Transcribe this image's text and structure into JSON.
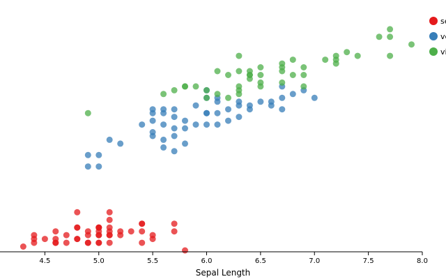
{
  "chart_data": {
    "type": "scatter",
    "title": "",
    "xlabel": "Sepal Length",
    "ylabel": "",
    "xlim": [
      4.0,
      8.0
    ],
    "xticks": [
      "4.5",
      "5.0",
      "5.5",
      "6.0",
      "6.5",
      "7.0",
      "7.5",
      "8.0"
    ],
    "grid": false,
    "legend_position": "top-right",
    "legend_labels": [
      "se",
      "ve",
      "vi"
    ],
    "series": [
      {
        "name": "se",
        "color": "#e41a1c",
        "points": [
          [
            4.3,
            0.1
          ],
          [
            4.4,
            0.2
          ],
          [
            4.4,
            0.3
          ],
          [
            4.4,
            0.4
          ],
          [
            4.5,
            0.3
          ],
          [
            4.6,
            0.2
          ],
          [
            4.6,
            0.2
          ],
          [
            4.6,
            0.3
          ],
          [
            4.6,
            0.5
          ],
          [
            4.7,
            0.2
          ],
          [
            4.7,
            0.4
          ],
          [
            4.8,
            0.3
          ],
          [
            4.8,
            0.3
          ],
          [
            4.8,
            0.6
          ],
          [
            4.8,
            0.6
          ],
          [
            4.8,
            1.0
          ],
          [
            4.9,
            0.2
          ],
          [
            4.9,
            0.2
          ],
          [
            4.9,
            0.4
          ],
          [
            4.9,
            0.5
          ],
          [
            5.0,
            0.2
          ],
          [
            5.0,
            0.2
          ],
          [
            5.0,
            0.4
          ],
          [
            5.0,
            0.4
          ],
          [
            5.0,
            0.5
          ],
          [
            5.0,
            0.6
          ],
          [
            5.0,
            0.6
          ],
          [
            5.0,
            0.6
          ],
          [
            5.1,
            0.2
          ],
          [
            5.1,
            0.4
          ],
          [
            5.1,
            0.4
          ],
          [
            5.1,
            0.5
          ],
          [
            5.1,
            0.6
          ],
          [
            5.1,
            0.8
          ],
          [
            5.1,
            1.0
          ],
          [
            5.2,
            0.4
          ],
          [
            5.2,
            0.5
          ],
          [
            5.3,
            0.5
          ],
          [
            5.4,
            0.2
          ],
          [
            5.4,
            0.5
          ],
          [
            5.4,
            0.7
          ],
          [
            5.4,
            0.7
          ],
          [
            5.5,
            0.3
          ],
          [
            5.5,
            0.4
          ],
          [
            5.7,
            0.5
          ],
          [
            5.7,
            0.7
          ],
          [
            5.8,
            0.0
          ]
        ]
      },
      {
        "name": "ve",
        "color": "#377eb8",
        "points": [
          [
            4.9,
            2.2
          ],
          [
            4.9,
            2.5
          ],
          [
            5.0,
            2.2
          ],
          [
            5.0,
            2.5
          ],
          [
            5.1,
            2.9
          ],
          [
            5.2,
            2.8
          ],
          [
            5.4,
            3.3
          ],
          [
            5.5,
            3.7
          ],
          [
            5.5,
            3.6
          ],
          [
            5.5,
            3.1
          ],
          [
            5.5,
            3.0
          ],
          [
            5.5,
            3.4
          ],
          [
            5.6,
            3.6
          ],
          [
            5.6,
            3.3
          ],
          [
            5.6,
            2.7
          ],
          [
            5.6,
            3.7
          ],
          [
            5.6,
            2.9
          ],
          [
            5.7,
            3.7
          ],
          [
            5.7,
            3.2
          ],
          [
            5.7,
            3.0
          ],
          [
            5.7,
            3.5
          ],
          [
            5.7,
            2.6
          ],
          [
            5.8,
            3.2
          ],
          [
            5.8,
            3.4
          ],
          [
            5.8,
            2.8
          ],
          [
            5.9,
            3.8
          ],
          [
            5.9,
            3.3
          ],
          [
            6.0,
            4.0
          ],
          [
            6.0,
            3.6
          ],
          [
            6.0,
            3.6
          ],
          [
            6.0,
            4.2
          ],
          [
            6.0,
            3.3
          ],
          [
            6.1,
            3.6
          ],
          [
            6.1,
            4.0
          ],
          [
            6.1,
            3.9
          ],
          [
            6.1,
            3.3
          ],
          [
            6.2,
            3.7
          ],
          [
            6.2,
            3.4
          ],
          [
            6.3,
            3.9
          ],
          [
            6.3,
            3.8
          ],
          [
            6.3,
            3.5
          ],
          [
            6.4,
            3.8
          ],
          [
            6.4,
            3.7
          ],
          [
            6.5,
            3.9
          ],
          [
            6.6,
            3.9
          ],
          [
            6.6,
            3.8
          ],
          [
            6.7,
            4.3
          ],
          [
            6.7,
            4.0
          ],
          [
            6.7,
            3.7
          ],
          [
            6.8,
            4.1
          ],
          [
            6.9,
            4.2
          ],
          [
            7.0,
            4.0
          ]
        ]
      },
      {
        "name": "vi",
        "color": "#4daf4a",
        "points": [
          [
            4.9,
            3.6
          ],
          [
            5.6,
            4.1
          ],
          [
            5.7,
            4.2
          ],
          [
            5.8,
            4.3
          ],
          [
            5.8,
            4.3
          ],
          [
            5.9,
            4.3
          ],
          [
            6.0,
            4.2
          ],
          [
            6.0,
            4.0
          ],
          [
            6.1,
            4.7
          ],
          [
            6.1,
            4.1
          ],
          [
            6.2,
            4.6
          ],
          [
            6.2,
            4.0
          ],
          [
            6.3,
            5.1
          ],
          [
            6.3,
            4.7
          ],
          [
            6.3,
            4.3
          ],
          [
            6.3,
            4.2
          ],
          [
            6.3,
            4.1
          ],
          [
            6.4,
            4.7
          ],
          [
            6.4,
            4.6
          ],
          [
            6.4,
            4.5
          ],
          [
            6.4,
            4.6
          ],
          [
            6.5,
            4.8
          ],
          [
            6.5,
            4.6
          ],
          [
            6.5,
            4.4
          ],
          [
            6.5,
            4.3
          ],
          [
            6.7,
            4.9
          ],
          [
            6.7,
            4.8
          ],
          [
            6.7,
            4.7
          ],
          [
            6.7,
            4.4
          ],
          [
            6.8,
            5.0
          ],
          [
            6.8,
            4.6
          ],
          [
            6.9,
            4.8
          ],
          [
            6.9,
            4.6
          ],
          [
            6.9,
            4.3
          ],
          [
            7.1,
            5.0
          ],
          [
            7.2,
            5.1
          ],
          [
            7.2,
            5.0
          ],
          [
            7.2,
            4.9
          ],
          [
            7.3,
            5.2
          ],
          [
            7.4,
            5.1
          ],
          [
            7.6,
            5.6
          ],
          [
            7.7,
            5.8
          ],
          [
            7.7,
            5.1
          ],
          [
            7.7,
            5.6
          ],
          [
            7.9,
            5.4
          ]
        ]
      }
    ]
  }
}
